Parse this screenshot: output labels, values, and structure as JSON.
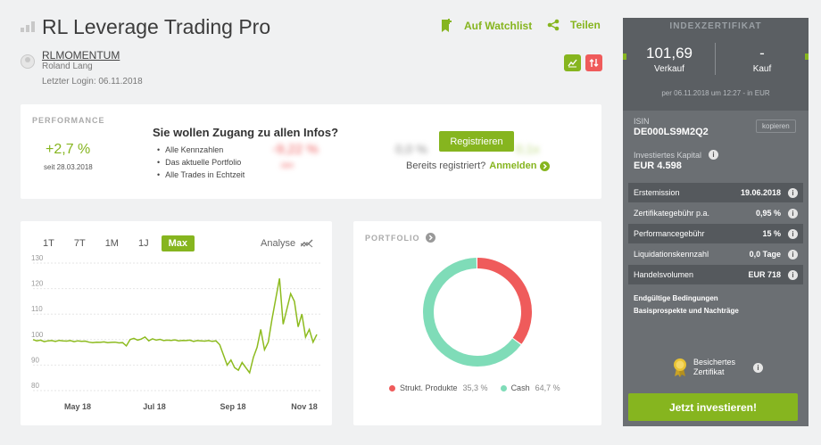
{
  "header": {
    "title": "RL Leverage Trading Pro",
    "watchlist_label": "Auf Watchlist",
    "share_label": "Teilen"
  },
  "author": {
    "username": "RLMOMENTUM",
    "name": "Roland Lang",
    "last_login": "Letzter Login: 06.11.2018"
  },
  "performance": {
    "label": "PERFORMANCE",
    "value": "+2,7 %",
    "since": "seit 28.03.2018",
    "blurred_1": "-9,22 %",
    "blurred_1_sub": "Jahr",
    "blurred_2": "0,0 %",
    "blurred_3": "0,1x",
    "access_title": "Sie wollen Zugang zu allen Infos?",
    "access_items": [
      "Alle Kennzahlen",
      "Das aktuelle Portfolio",
      "Alle Trades in Echtzeit"
    ],
    "register_label": "Registrieren",
    "already_label": "Bereits registriert?",
    "login_label": "Anmelden"
  },
  "chart_tabs": [
    "1T",
    "7T",
    "1M",
    "1J",
    "Max"
  ],
  "analyse_label": "Analyse",
  "chart_data": {
    "type": "line",
    "x_ticks": [
      "May 18",
      "Jul 18",
      "Sep 18",
      "Nov 18"
    ],
    "y_ticks": [
      130,
      120,
      110,
      100,
      90,
      80
    ],
    "ylim": [
      80,
      130
    ],
    "series": [
      {
        "values": [
          100,
          99.5,
          99.8,
          99.2,
          99.5,
          99.6,
          99.3,
          99.7,
          99.5,
          99.4,
          99.6,
          99.2,
          99.5,
          99.3,
          99.4,
          99.0,
          98.8,
          99.0,
          98.9,
          99.1,
          98.8,
          98.9,
          99.0,
          98.7,
          98.8,
          97.5,
          100.0,
          100.5,
          99.8,
          100.2,
          101,
          99.5,
          100.3,
          99.8,
          100.1,
          99.6,
          99.8,
          99.7,
          99.9,
          99.5,
          99.7,
          99.6,
          99.8,
          99.3,
          99.6,
          99.5,
          99.4,
          99.6,
          99.3,
          99.5,
          98.0,
          94,
          90,
          92,
          89,
          88,
          91,
          89,
          87,
          93,
          97,
          104,
          96,
          99,
          108,
          116,
          124,
          106,
          112,
          118,
          115,
          105,
          110,
          101,
          104,
          99,
          102
        ]
      }
    ]
  },
  "portfolio": {
    "label": "PORTFOLIO",
    "segments": [
      {
        "name": "Strukt. Produkte",
        "pct_label": "35,3 %",
        "value": 35.3,
        "color": "#ef5b5b"
      },
      {
        "name": "Cash",
        "pct_label": "64,7 %",
        "value": 64.7,
        "color": "#7fdcb8"
      }
    ]
  },
  "sidebar": {
    "heading": "INDEXZERTIFIKAT",
    "sell_value": "101,69",
    "sell_label": "Verkauf",
    "buy_value": "-",
    "buy_label": "Kauf",
    "per_line": "per 06.11.2018 um 12:27 - in EUR",
    "isin_label": "ISIN",
    "isin_value": "DE000LS9M2Q2",
    "copy_label": "kopieren",
    "invested_label": "Investiertes Kapital",
    "invested_value": "EUR 4.598",
    "rows": [
      {
        "label": "Erstemission",
        "value": "19.06.2018"
      },
      {
        "label": "Zertifikategebühr p.a.",
        "value": "0,95 %"
      },
      {
        "label": "Performancegebühr",
        "value": "15 %"
      },
      {
        "label": "Liquidationskennzahl",
        "value": "0,0 Tage"
      },
      {
        "label": "Handelsvolumen",
        "value": "EUR 718"
      }
    ],
    "link_1": "Endgültige Bedingungen",
    "link_2": "Basisprospekte und Nachträge",
    "secured_1": "Besichertes",
    "secured_2": "Zertifikat",
    "invest_label": "Jetzt investieren!"
  }
}
